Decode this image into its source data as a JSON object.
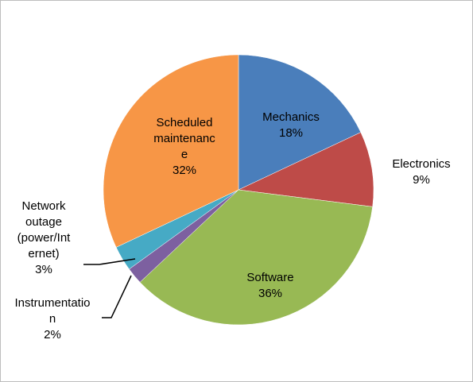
{
  "chart_data": {
    "type": "pie",
    "categories": [
      "Mechanics",
      "Electronics",
      "Software",
      "Instrumentation",
      "Network outage (power/Internet)",
      "Scheduled maintenance"
    ],
    "values": [
      18,
      9,
      36,
      2,
      3,
      32
    ],
    "value_labels": [
      "18%",
      "9%",
      "36%",
      "2%",
      "3%",
      "32%"
    ],
    "colors": [
      "#4a7ebb",
      "#be4b48",
      "#98b954",
      "#7d60a0",
      "#46aac5",
      "#f79646"
    ]
  }
}
